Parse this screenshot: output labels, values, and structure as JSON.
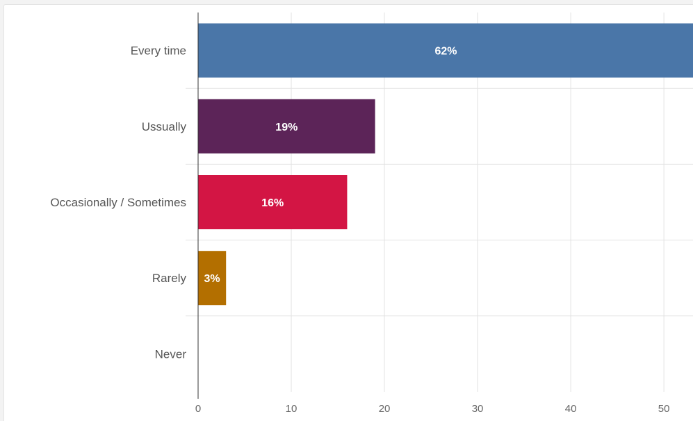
{
  "chart_data": {
    "type": "bar",
    "orientation": "horizontal",
    "categories": [
      "Every time",
      "Ussually",
      "Occasionally / Sometimes",
      "Rarely",
      "Never"
    ],
    "values": [
      62,
      19,
      16,
      3,
      0
    ],
    "data_labels": [
      "62%",
      "19%",
      "16%",
      "3%",
      ""
    ],
    "colors": [
      "#4a76a8",
      "#5c2458",
      "#d31544",
      "#b36f00",
      "#999999"
    ],
    "xlim": [
      0,
      53.2
    ],
    "xticks": [
      0,
      10,
      20,
      30,
      40,
      50
    ],
    "title": "",
    "xlabel": "",
    "ylabel": "",
    "grid": true,
    "legend": "none"
  }
}
